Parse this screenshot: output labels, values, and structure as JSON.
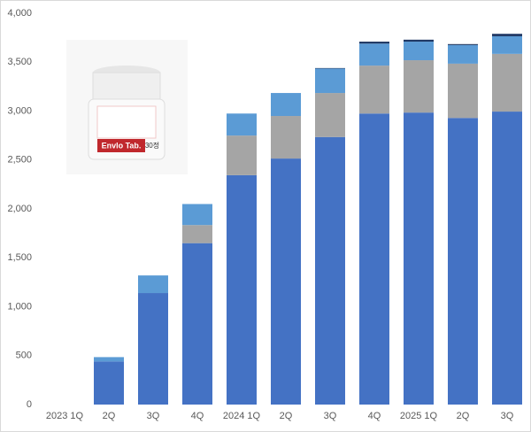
{
  "chart_data": {
    "type": "stacked-bar",
    "categories": [
      "2023 1Q",
      "2Q",
      "3Q",
      "4Q",
      "2024 1Q",
      "2Q",
      "3Q",
      "4Q",
      "2025 1Q",
      "2Q",
      "3Q"
    ],
    "series": [
      {
        "color": "#4472c4",
        "values": [
          0,
          440,
          1140,
          1650,
          2345,
          2515,
          2735,
          2975,
          2985,
          2930,
          2995
        ]
      },
      {
        "color": "#a5a5a5",
        "values": [
          0,
          0,
          0,
          185,
          405,
          435,
          450,
          490,
          535,
          555,
          590
        ]
      },
      {
        "color": "#5b9bd5",
        "values": [
          0,
          45,
          180,
          215,
          225,
          235,
          250,
          225,
          190,
          190,
          180
        ]
      },
      {
        "color": "#1f3864",
        "values": [
          0,
          0,
          0,
          0,
          0,
          0,
          5,
          20,
          20,
          10,
          25
        ]
      }
    ],
    "ylim": [
      0,
      4000
    ],
    "yticks": [
      0,
      500,
      {
        "value": 1000,
        "label": "1,000"
      },
      {
        "value": 1500,
        "label": "1,500"
      },
      {
        "value": 2000,
        "label": "2,000"
      },
      {
        "value": 2500,
        "label": "2,500"
      },
      {
        "value": 3000,
        "label": "3,000"
      },
      {
        "value": 3500,
        "label": "3,500"
      },
      {
        "value": 4000,
        "label": "4,000"
      }
    ],
    "grid": false,
    "annotations": [
      "Envlo Tab.",
      "30정"
    ]
  }
}
